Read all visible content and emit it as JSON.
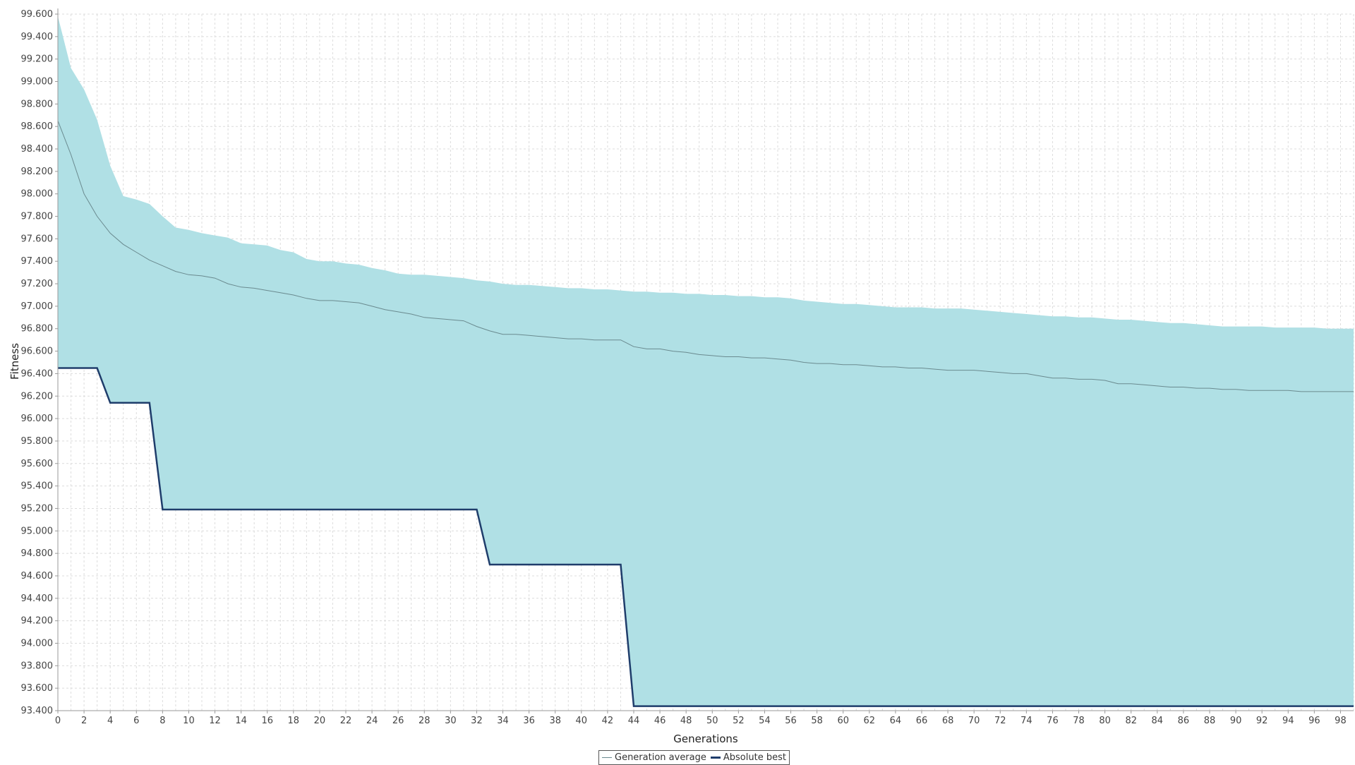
{
  "chart_data": {
    "type": "line",
    "xlabel": "Generations",
    "ylabel": "Fitness",
    "xlim": [
      0,
      99
    ],
    "ylim": [
      93.4,
      99.6
    ],
    "x_ticks": [
      "0",
      "2",
      "4",
      "6",
      "8",
      "10",
      "12",
      "14",
      "16",
      "18",
      "20",
      "22",
      "24",
      "26",
      "28",
      "30",
      "32",
      "34",
      "36",
      "38",
      "40",
      "42",
      "44",
      "46",
      "48",
      "50",
      "52",
      "54",
      "56",
      "58",
      "60",
      "62",
      "64",
      "66",
      "68",
      "70",
      "72",
      "74",
      "76",
      "78",
      "80",
      "82",
      "84",
      "86",
      "88",
      "90",
      "92",
      "94",
      "96",
      "98"
    ],
    "y_ticks": [
      "99.600",
      "99.400",
      "99.200",
      "99.000",
      "98.800",
      "98.600",
      "98.400",
      "98.200",
      "98.000",
      "97.800",
      "97.600",
      "97.400",
      "97.200",
      "97.000",
      "96.800",
      "96.600",
      "96.400",
      "96.200",
      "96.000",
      "95.800",
      "95.600",
      "95.400",
      "95.200",
      "95.000",
      "94.800",
      "94.600",
      "94.400",
      "94.200",
      "94.000",
      "93.800",
      "93.600",
      "93.400"
    ],
    "grid": true,
    "legend_position": "bottom-center",
    "band": {
      "description": "worst-to-best generation fitness range",
      "upper": [
        [
          0,
          99.58
        ],
        [
          1,
          99.12
        ],
        [
          2,
          98.93
        ],
        [
          3,
          98.66
        ],
        [
          4,
          98.25
        ],
        [
          5,
          97.98
        ],
        [
          6,
          97.95
        ],
        [
          7,
          97.91
        ],
        [
          8,
          97.8
        ],
        [
          9,
          97.7
        ],
        [
          10,
          97.68
        ],
        [
          11,
          97.65
        ],
        [
          12,
          97.63
        ],
        [
          13,
          97.61
        ],
        [
          14,
          97.56
        ],
        [
          15,
          97.55
        ],
        [
          16,
          97.54
        ],
        [
          17,
          97.5
        ],
        [
          18,
          97.48
        ],
        [
          19,
          97.42
        ],
        [
          20,
          97.4
        ],
        [
          21,
          97.4
        ],
        [
          22,
          97.38
        ],
        [
          23,
          97.37
        ],
        [
          24,
          97.34
        ],
        [
          25,
          97.32
        ],
        [
          26,
          97.29
        ],
        [
          27,
          97.28
        ],
        [
          28,
          97.28
        ],
        [
          29,
          97.27
        ],
        [
          30,
          97.26
        ],
        [
          31,
          97.25
        ],
        [
          32,
          97.23
        ],
        [
          33,
          97.22
        ],
        [
          34,
          97.2
        ],
        [
          35,
          97.19
        ],
        [
          36,
          97.19
        ],
        [
          37,
          97.18
        ],
        [
          38,
          97.17
        ],
        [
          39,
          97.16
        ],
        [
          40,
          97.16
        ],
        [
          41,
          97.15
        ],
        [
          42,
          97.15
        ],
        [
          43,
          97.14
        ],
        [
          44,
          97.13
        ],
        [
          45,
          97.13
        ],
        [
          46,
          97.12
        ],
        [
          47,
          97.12
        ],
        [
          48,
          97.11
        ],
        [
          49,
          97.11
        ],
        [
          50,
          97.1
        ],
        [
          51,
          97.1
        ],
        [
          52,
          97.09
        ],
        [
          53,
          97.09
        ],
        [
          54,
          97.08
        ],
        [
          55,
          97.08
        ],
        [
          56,
          97.07
        ],
        [
          57,
          97.05
        ],
        [
          58,
          97.04
        ],
        [
          59,
          97.03
        ],
        [
          60,
          97.02
        ],
        [
          61,
          97.02
        ],
        [
          62,
          97.01
        ],
        [
          63,
          97.0
        ],
        [
          64,
          96.99
        ],
        [
          65,
          96.99
        ],
        [
          66,
          96.99
        ],
        [
          67,
          96.98
        ],
        [
          68,
          96.98
        ],
        [
          69,
          96.98
        ],
        [
          70,
          96.97
        ],
        [
          71,
          96.96
        ],
        [
          72,
          96.95
        ],
        [
          73,
          96.94
        ],
        [
          74,
          96.93
        ],
        [
          75,
          96.92
        ],
        [
          76,
          96.91
        ],
        [
          77,
          96.91
        ],
        [
          78,
          96.9
        ],
        [
          79,
          96.9
        ],
        [
          80,
          96.89
        ],
        [
          81,
          96.88
        ],
        [
          82,
          96.88
        ],
        [
          83,
          96.87
        ],
        [
          84,
          96.86
        ],
        [
          85,
          96.85
        ],
        [
          86,
          96.85
        ],
        [
          87,
          96.84
        ],
        [
          88,
          96.83
        ],
        [
          89,
          96.82
        ],
        [
          90,
          96.82
        ],
        [
          91,
          96.82
        ],
        [
          92,
          96.82
        ],
        [
          93,
          96.81
        ],
        [
          94,
          96.81
        ],
        [
          95,
          96.81
        ],
        [
          96,
          96.81
        ],
        [
          97,
          96.8
        ],
        [
          98,
          96.8
        ],
        [
          99,
          96.8
        ]
      ]
    },
    "series": [
      {
        "name": "Generation average",
        "color": "#6a8a8f",
        "values": [
          [
            0,
            98.65
          ],
          [
            1,
            98.35
          ],
          [
            2,
            98.0
          ],
          [
            3,
            97.8
          ],
          [
            4,
            97.65
          ],
          [
            5,
            97.55
          ],
          [
            6,
            97.48
          ],
          [
            7,
            97.41
          ],
          [
            8,
            97.36
          ],
          [
            9,
            97.31
          ],
          [
            10,
            97.28
          ],
          [
            11,
            97.27
          ],
          [
            12,
            97.25
          ],
          [
            13,
            97.2
          ],
          [
            14,
            97.17
          ],
          [
            15,
            97.16
          ],
          [
            16,
            97.14
          ],
          [
            17,
            97.12
          ],
          [
            18,
            97.1
          ],
          [
            19,
            97.07
          ],
          [
            20,
            97.05
          ],
          [
            21,
            97.05
          ],
          [
            22,
            97.04
          ],
          [
            23,
            97.03
          ],
          [
            24,
            97.0
          ],
          [
            25,
            96.97
          ],
          [
            26,
            96.95
          ],
          [
            27,
            96.93
          ],
          [
            28,
            96.9
          ],
          [
            29,
            96.89
          ],
          [
            30,
            96.88
          ],
          [
            31,
            96.87
          ],
          [
            32,
            96.82
          ],
          [
            33,
            96.78
          ],
          [
            34,
            96.75
          ],
          [
            35,
            96.75
          ],
          [
            36,
            96.74
          ],
          [
            37,
            96.73
          ],
          [
            38,
            96.72
          ],
          [
            39,
            96.71
          ],
          [
            40,
            96.71
          ],
          [
            41,
            96.7
          ],
          [
            42,
            96.7
          ],
          [
            43,
            96.7
          ],
          [
            44,
            96.64
          ],
          [
            45,
            96.62
          ],
          [
            46,
            96.62
          ],
          [
            47,
            96.6
          ],
          [
            48,
            96.59
          ],
          [
            49,
            96.57
          ],
          [
            50,
            96.56
          ],
          [
            51,
            96.55
          ],
          [
            52,
            96.55
          ],
          [
            53,
            96.54
          ],
          [
            54,
            96.54
          ],
          [
            55,
            96.53
          ],
          [
            56,
            96.52
          ],
          [
            57,
            96.5
          ],
          [
            58,
            96.49
          ],
          [
            59,
            96.49
          ],
          [
            60,
            96.48
          ],
          [
            61,
            96.48
          ],
          [
            62,
            96.47
          ],
          [
            63,
            96.46
          ],
          [
            64,
            96.46
          ],
          [
            65,
            96.45
          ],
          [
            66,
            96.45
          ],
          [
            67,
            96.44
          ],
          [
            68,
            96.43
          ],
          [
            69,
            96.43
          ],
          [
            70,
            96.43
          ],
          [
            71,
            96.42
          ],
          [
            72,
            96.41
          ],
          [
            73,
            96.4
          ],
          [
            74,
            96.4
          ],
          [
            75,
            96.38
          ],
          [
            76,
            96.36
          ],
          [
            77,
            96.36
          ],
          [
            78,
            96.35
          ],
          [
            79,
            96.35
          ],
          [
            80,
            96.34
          ],
          [
            81,
            96.31
          ],
          [
            82,
            96.31
          ],
          [
            83,
            96.3
          ],
          [
            84,
            96.29
          ],
          [
            85,
            96.28
          ],
          [
            86,
            96.28
          ],
          [
            87,
            96.27
          ],
          [
            88,
            96.27
          ],
          [
            89,
            96.26
          ],
          [
            90,
            96.26
          ],
          [
            91,
            96.25
          ],
          [
            92,
            96.25
          ],
          [
            93,
            96.25
          ],
          [
            94,
            96.25
          ],
          [
            95,
            96.24
          ],
          [
            96,
            96.24
          ],
          [
            97,
            96.24
          ],
          [
            98,
            96.24
          ],
          [
            99,
            96.24
          ]
        ]
      },
      {
        "name": "Absolute best",
        "color": "#1f3d6b",
        "values": [
          [
            0,
            96.45
          ],
          [
            1,
            96.45
          ],
          [
            2,
            96.45
          ],
          [
            3,
            96.45
          ],
          [
            4,
            96.14
          ],
          [
            5,
            96.14
          ],
          [
            6,
            96.14
          ],
          [
            7,
            96.14
          ],
          [
            8,
            95.19
          ],
          [
            9,
            95.19
          ],
          [
            10,
            95.19
          ],
          [
            11,
            95.19
          ],
          [
            12,
            95.19
          ],
          [
            13,
            95.19
          ],
          [
            14,
            95.19
          ],
          [
            15,
            95.19
          ],
          [
            16,
            95.19
          ],
          [
            17,
            95.19
          ],
          [
            18,
            95.19
          ],
          [
            19,
            95.19
          ],
          [
            20,
            95.19
          ],
          [
            21,
            95.19
          ],
          [
            22,
            95.19
          ],
          [
            23,
            95.19
          ],
          [
            24,
            95.19
          ],
          [
            25,
            95.19
          ],
          [
            26,
            95.19
          ],
          [
            27,
            95.19
          ],
          [
            28,
            95.19
          ],
          [
            29,
            95.19
          ],
          [
            30,
            95.19
          ],
          [
            31,
            95.19
          ],
          [
            32,
            95.19
          ],
          [
            33,
            94.7
          ],
          [
            34,
            94.7
          ],
          [
            35,
            94.7
          ],
          [
            36,
            94.7
          ],
          [
            37,
            94.7
          ],
          [
            38,
            94.7
          ],
          [
            39,
            94.7
          ],
          [
            40,
            94.7
          ],
          [
            41,
            94.7
          ],
          [
            42,
            94.7
          ],
          [
            43,
            94.7
          ],
          [
            44,
            93.44
          ],
          [
            45,
            93.44
          ],
          [
            46,
            93.44
          ],
          [
            47,
            93.44
          ],
          [
            48,
            93.44
          ],
          [
            49,
            93.44
          ],
          [
            50,
            93.44
          ],
          [
            51,
            93.44
          ],
          [
            52,
            93.44
          ],
          [
            53,
            93.44
          ],
          [
            54,
            93.44
          ],
          [
            55,
            93.44
          ],
          [
            56,
            93.44
          ],
          [
            57,
            93.44
          ],
          [
            58,
            93.44
          ],
          [
            59,
            93.44
          ],
          [
            60,
            93.44
          ],
          [
            61,
            93.44
          ],
          [
            62,
            93.44
          ],
          [
            63,
            93.44
          ],
          [
            64,
            93.44
          ],
          [
            65,
            93.44
          ],
          [
            66,
            93.44
          ],
          [
            67,
            93.44
          ],
          [
            68,
            93.44
          ],
          [
            69,
            93.44
          ],
          [
            70,
            93.44
          ],
          [
            71,
            93.44
          ],
          [
            72,
            93.44
          ],
          [
            73,
            93.44
          ],
          [
            74,
            93.44
          ],
          [
            75,
            93.44
          ],
          [
            76,
            93.44
          ],
          [
            77,
            93.44
          ],
          [
            78,
            93.44
          ],
          [
            79,
            93.44
          ],
          [
            80,
            93.44
          ],
          [
            81,
            93.44
          ],
          [
            82,
            93.44
          ],
          [
            83,
            93.44
          ],
          [
            84,
            93.44
          ],
          [
            85,
            93.44
          ],
          [
            86,
            93.44
          ],
          [
            87,
            93.44
          ],
          [
            88,
            93.44
          ],
          [
            89,
            93.44
          ],
          [
            90,
            93.44
          ],
          [
            91,
            93.44
          ],
          [
            92,
            93.44
          ],
          [
            93,
            93.44
          ],
          [
            94,
            93.44
          ],
          [
            95,
            93.44
          ],
          [
            96,
            93.44
          ],
          [
            97,
            93.44
          ],
          [
            98,
            93.44
          ],
          [
            99,
            93.44
          ]
        ]
      }
    ],
    "colors": {
      "band_fill": "#b0e0e5",
      "grid": "#dcdcdc",
      "axis": "#999999"
    }
  }
}
